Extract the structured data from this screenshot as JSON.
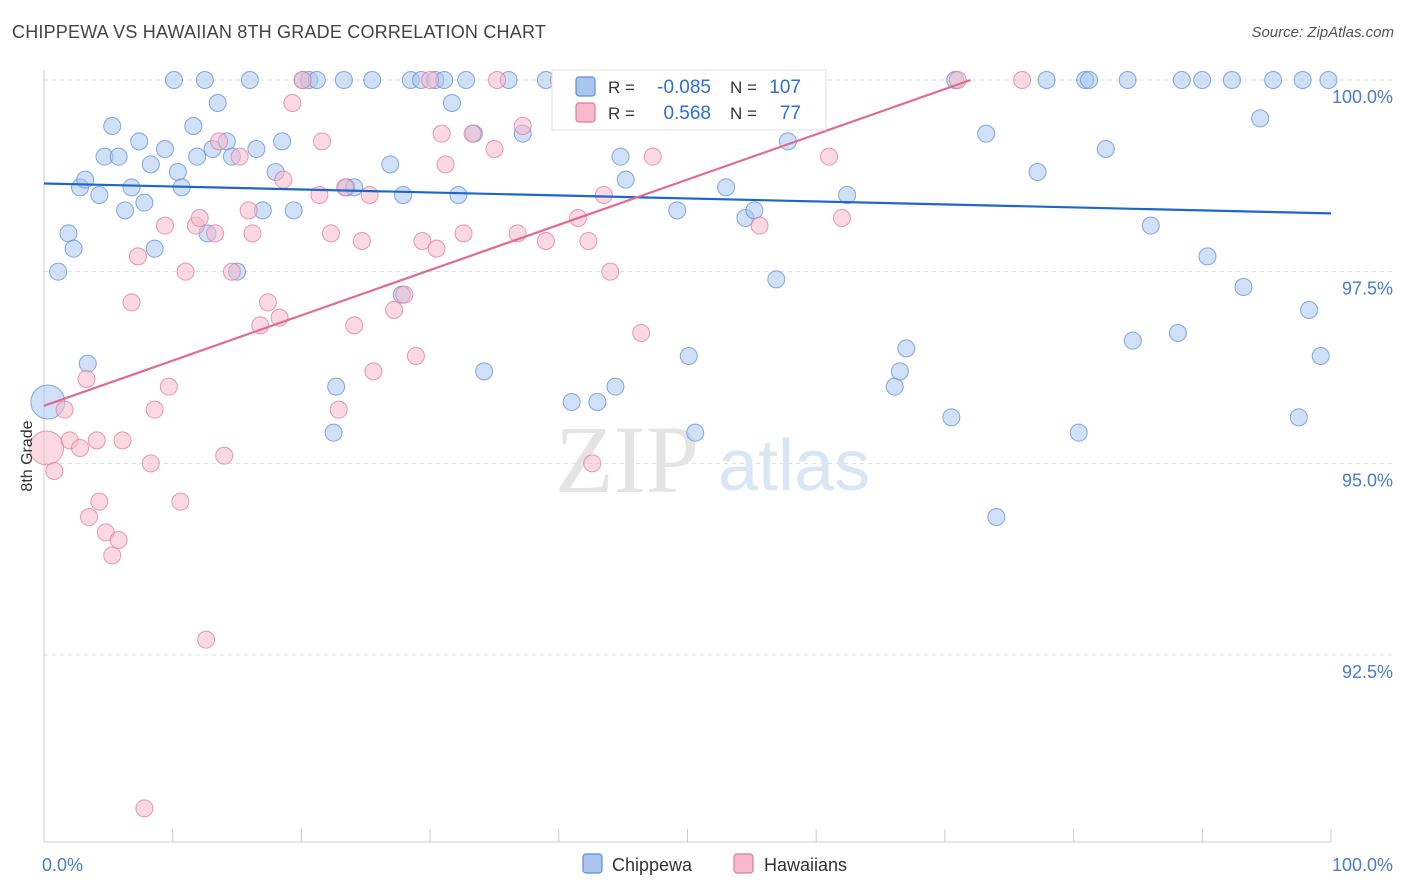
{
  "title": "CHIPPEWA VS HAWAIIAN 8TH GRADE CORRELATION CHART",
  "source": "Source: ZipAtlas.com",
  "watermark": {
    "zip": "ZIP",
    "atlas": "atlas"
  },
  "colors": {
    "chippewa_fill": "#a9c6ee",
    "chippewa_stroke": "#5d8fd6",
    "chippewa_line": "#1f66cc",
    "hawaiians_fill": "#f7b9cb",
    "hawaiians_stroke": "#e07a9c",
    "hawaiians_line": "#e06a94",
    "tick_label": "#4a7cc7",
    "grid": "#dddddd"
  },
  "legend": {
    "chippewa": {
      "r_label": "R =",
      "r_value": "-0.085",
      "n_label": "N =",
      "n_value": "107"
    },
    "hawaiians": {
      "r_label": "R =",
      "r_value": "0.568",
      "n_label": "N =",
      "n_value": "77"
    }
  },
  "chart_data": {
    "type": "scatter",
    "ylabel": "8th Grade",
    "xlabel": "",
    "xlim": [
      0,
      100
    ],
    "ylim": [
      90.2,
      100.4
    ],
    "x_tick_labels": [
      {
        "value": 0,
        "label": "0.0%"
      },
      {
        "value": 100,
        "label": "100.0%"
      }
    ],
    "y_tick_labels": [
      {
        "value": 100,
        "label": "100.0%"
      },
      {
        "value": 97.5,
        "label": "97.5%"
      },
      {
        "value": 95,
        "label": "95.0%"
      },
      {
        "value": 92.5,
        "label": "92.5%"
      }
    ],
    "x_minor_ticks": [
      0,
      10,
      20,
      30,
      40,
      50,
      60,
      70,
      80,
      90,
      100
    ],
    "legend_entries": [
      "Chippewa",
      "Hawaiians"
    ],
    "series": [
      {
        "name": "Chippewa",
        "trend": {
          "x": [
            0,
            100
          ],
          "y": [
            98.65,
            98.26
          ]
        },
        "points": [
          [
            0.3,
            95.8
          ],
          [
            1.1,
            97.5
          ],
          [
            1.9,
            98.0
          ],
          [
            2.3,
            97.8
          ],
          [
            2.8,
            98.6
          ],
          [
            3.2,
            98.7
          ],
          [
            3.4,
            96.3
          ],
          [
            4.3,
            98.5
          ],
          [
            4.7,
            99.0
          ],
          [
            5.3,
            99.4
          ],
          [
            5.8,
            99.0
          ],
          [
            6.3,
            98.3
          ],
          [
            6.8,
            98.6
          ],
          [
            7.4,
            99.2
          ],
          [
            7.8,
            98.4
          ],
          [
            8.3,
            98.9
          ],
          [
            8.6,
            97.8
          ],
          [
            9.4,
            99.1
          ],
          [
            10.1,
            100.0
          ],
          [
            10.4,
            98.8
          ],
          [
            10.7,
            98.6
          ],
          [
            11.6,
            99.4
          ],
          [
            11.9,
            99.0
          ],
          [
            12.5,
            100.0
          ],
          [
            12.7,
            98.0
          ],
          [
            13.1,
            99.1
          ],
          [
            13.5,
            99.7
          ],
          [
            14.2,
            99.2
          ],
          [
            14.6,
            99.0
          ],
          [
            15.0,
            97.5
          ],
          [
            16.0,
            100.0
          ],
          [
            16.5,
            99.1
          ],
          [
            17.0,
            98.3
          ],
          [
            18.0,
            98.8
          ],
          [
            18.5,
            99.2
          ],
          [
            19.4,
            98.3
          ],
          [
            20.1,
            100.0
          ],
          [
            20.6,
            100.0
          ],
          [
            21.2,
            100.0
          ],
          [
            22.7,
            96.0
          ],
          [
            22.5,
            95.4
          ],
          [
            23.3,
            100.0
          ],
          [
            23.5,
            98.6
          ],
          [
            24.1,
            98.6
          ],
          [
            25.5,
            100.0
          ],
          [
            26.9,
            98.9
          ],
          [
            27.9,
            98.5
          ],
          [
            27.8,
            97.2
          ],
          [
            28.5,
            100.0
          ],
          [
            29.3,
            100.0
          ],
          [
            30.4,
            100.0
          ],
          [
            31.1,
            100.0
          ],
          [
            31.7,
            99.7
          ],
          [
            32.2,
            98.5
          ],
          [
            32.8,
            100.0
          ],
          [
            33.4,
            99.3
          ],
          [
            34.2,
            96.2
          ],
          [
            36.1,
            100.0
          ],
          [
            37.2,
            99.3
          ],
          [
            39.0,
            100.0
          ],
          [
            41.0,
            95.8
          ],
          [
            43.0,
            95.8
          ],
          [
            44.0,
            100.0
          ],
          [
            44.4,
            96.0
          ],
          [
            44.8,
            99.0
          ],
          [
            45.2,
            98.7
          ],
          [
            47.4,
            100.0
          ],
          [
            49.2,
            98.3
          ],
          [
            50.1,
            96.4
          ],
          [
            50.6,
            95.4
          ],
          [
            51.0,
            100.0
          ],
          [
            53.0,
            98.6
          ],
          [
            54.5,
            98.2
          ],
          [
            55.2,
            98.3
          ],
          [
            56.9,
            97.4
          ],
          [
            57.8,
            99.2
          ],
          [
            60.0,
            100.0
          ],
          [
            62.4,
            98.5
          ],
          [
            66.1,
            96.0
          ],
          [
            66.5,
            96.2
          ],
          [
            67.0,
            96.5
          ],
          [
            70.5,
            95.6
          ],
          [
            70.8,
            100.0
          ],
          [
            73.2,
            99.3
          ],
          [
            74.0,
            94.3
          ],
          [
            77.2,
            98.8
          ],
          [
            77.9,
            100.0
          ],
          [
            80.4,
            95.4
          ],
          [
            80.9,
            100.0
          ],
          [
            81.2,
            100.0
          ],
          [
            82.5,
            99.1
          ],
          [
            84.2,
            100.0
          ],
          [
            84.6,
            96.6
          ],
          [
            86.0,
            98.1
          ],
          [
            88.1,
            96.7
          ],
          [
            88.4,
            100.0
          ],
          [
            90.0,
            100.0
          ],
          [
            90.4,
            97.7
          ],
          [
            92.3,
            100.0
          ],
          [
            93.2,
            97.3
          ],
          [
            94.5,
            99.5
          ],
          [
            95.5,
            100.0
          ],
          [
            97.5,
            95.6
          ],
          [
            97.8,
            100.0
          ],
          [
            98.3,
            97.0
          ],
          [
            99.2,
            96.4
          ],
          [
            99.8,
            100.0
          ]
        ]
      },
      {
        "name": "Hawaiians",
        "trend": {
          "x": [
            0,
            72
          ],
          "y": [
            95.75,
            100.0
          ]
        },
        "points": [
          [
            0.2,
            95.2
          ],
          [
            0.8,
            94.9
          ],
          [
            1.6,
            95.7
          ],
          [
            2.0,
            95.3
          ],
          [
            2.8,
            95.2
          ],
          [
            3.3,
            96.1
          ],
          [
            3.5,
            94.3
          ],
          [
            4.1,
            95.3
          ],
          [
            4.3,
            94.5
          ],
          [
            4.8,
            94.1
          ],
          [
            5.3,
            93.8
          ],
          [
            5.8,
            94.0
          ],
          [
            6.1,
            95.3
          ],
          [
            6.8,
            97.1
          ],
          [
            7.3,
            97.7
          ],
          [
            7.8,
            90.5
          ],
          [
            8.3,
            95.0
          ],
          [
            8.6,
            95.7
          ],
          [
            9.4,
            98.1
          ],
          [
            9.7,
            96.0
          ],
          [
            10.6,
            94.5
          ],
          [
            11.0,
            97.5
          ],
          [
            11.8,
            98.1
          ],
          [
            12.1,
            98.2
          ],
          [
            12.6,
            92.7
          ],
          [
            13.3,
            98.0
          ],
          [
            13.6,
            99.2
          ],
          [
            14.0,
            95.1
          ],
          [
            14.6,
            97.5
          ],
          [
            15.2,
            99.0
          ],
          [
            15.9,
            98.3
          ],
          [
            16.2,
            98.0
          ],
          [
            16.8,
            96.8
          ],
          [
            17.4,
            97.1
          ],
          [
            18.3,
            96.9
          ],
          [
            18.6,
            98.7
          ],
          [
            19.3,
            99.7
          ],
          [
            20.1,
            100.0
          ],
          [
            21.4,
            98.5
          ],
          [
            21.6,
            99.2
          ],
          [
            22.3,
            98.0
          ],
          [
            22.9,
            95.7
          ],
          [
            23.4,
            98.6
          ],
          [
            24.1,
            96.8
          ],
          [
            24.7,
            97.9
          ],
          [
            25.3,
            98.5
          ],
          [
            25.6,
            96.2
          ],
          [
            27.2,
            97.0
          ],
          [
            28.0,
            97.2
          ],
          [
            28.9,
            96.4
          ],
          [
            29.4,
            97.9
          ],
          [
            30.0,
            100.0
          ],
          [
            30.5,
            97.8
          ],
          [
            30.9,
            99.3
          ],
          [
            31.2,
            98.9
          ],
          [
            32.6,
            98.0
          ],
          [
            33.3,
            99.3
          ],
          [
            35.0,
            99.1
          ],
          [
            35.2,
            100.0
          ],
          [
            36.8,
            98.0
          ],
          [
            37.2,
            99.4
          ],
          [
            39.0,
            97.9
          ],
          [
            40.0,
            100.0
          ],
          [
            41.5,
            98.2
          ],
          [
            42.3,
            97.9
          ],
          [
            42.6,
            95.0
          ],
          [
            43.5,
            98.5
          ],
          [
            44.0,
            97.5
          ],
          [
            45.3,
            100.0
          ],
          [
            46.4,
            96.7
          ],
          [
            47.3,
            99.0
          ],
          [
            50.6,
            100.0
          ],
          [
            55.6,
            98.1
          ],
          [
            61.0,
            99.0
          ],
          [
            62.0,
            98.2
          ],
          [
            71.0,
            100.0
          ],
          [
            76.0,
            100.0
          ]
        ]
      }
    ]
  }
}
